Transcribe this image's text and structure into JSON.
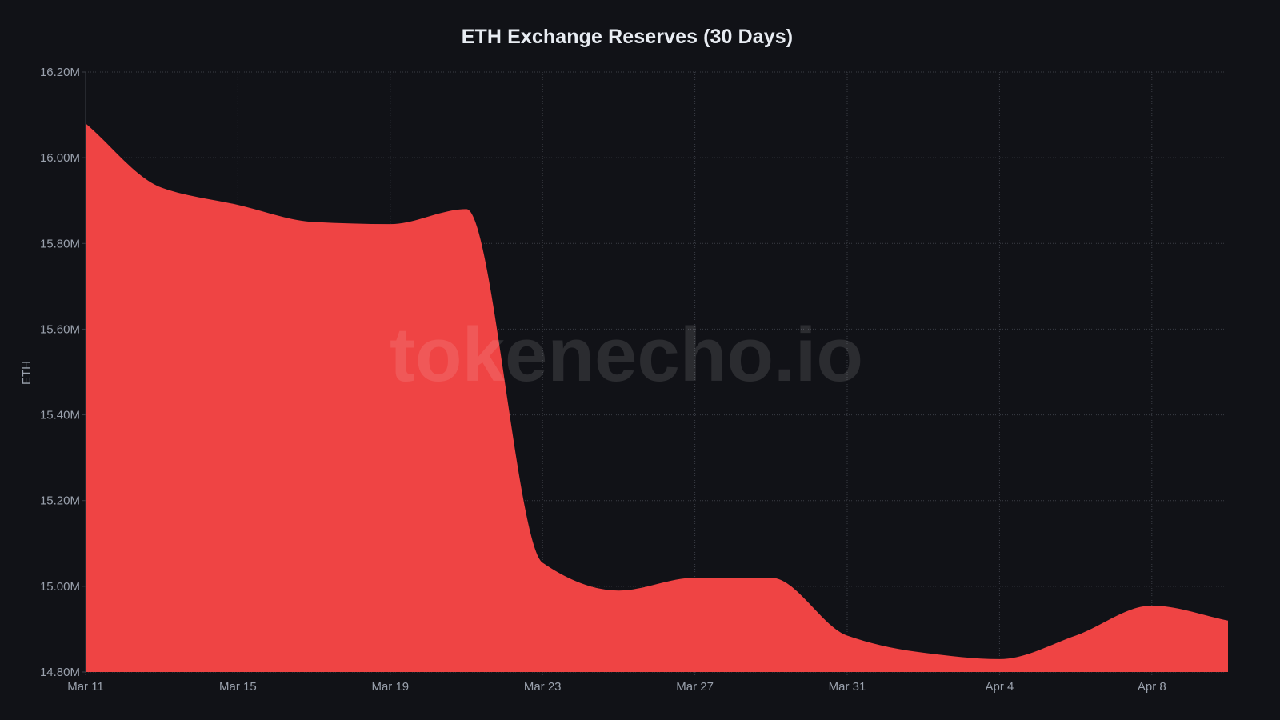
{
  "header": {
    "title": "ETH Exchange Reserves (30 Days)"
  },
  "watermark": "tokenecho.io",
  "colors": {
    "background": "#111217",
    "area_fill": "#EF4444",
    "grid": "#3a3d45",
    "tick_text": "#9aa1ad",
    "title_text": "#e8ecf2"
  },
  "chart_data": {
    "type": "area",
    "title": "ETH Exchange Reserves (30 Days)",
    "xlabel": "",
    "ylabel": "ETH",
    "ylim": [
      14.8,
      16.2
    ],
    "y_unit": "M",
    "grid": true,
    "legend": null,
    "x_tick_labels": [
      "Mar 11",
      "Mar 15",
      "Mar 19",
      "Mar 23",
      "Mar 27",
      "Mar 31",
      "Apr 4",
      "Apr 8"
    ],
    "y_tick_labels": [
      "14.80M",
      "15.00M",
      "15.20M",
      "15.40M",
      "15.60M",
      "15.80M",
      "16.00M",
      "16.20M"
    ],
    "y_ticks": [
      14.8,
      15.0,
      15.2,
      15.4,
      15.6,
      15.8,
      16.0,
      16.2
    ],
    "x_day_offsets_ticks": [
      0,
      4,
      8,
      12,
      16,
      20,
      24,
      28
    ],
    "x": [
      "Mar 11",
      "Mar 13",
      "Mar 15",
      "Mar 17",
      "Mar 19",
      "Mar 21",
      "Mar 23",
      "Mar 25",
      "Mar 27",
      "Mar 29",
      "Mar 31",
      "Apr 2",
      "Apr 4",
      "Apr 6",
      "Apr 8",
      "Apr 10"
    ],
    "x_day_offsets": [
      0,
      2,
      4,
      6,
      8,
      10,
      12,
      14,
      16,
      18,
      20,
      22,
      24,
      26,
      28,
      30
    ],
    "series": [
      {
        "name": "ETH Exchange Reserves",
        "values": [
          16.08,
          15.93,
          15.89,
          15.85,
          15.845,
          15.88,
          15.055,
          14.99,
          15.02,
          15.02,
          14.885,
          14.845,
          14.83,
          14.885,
          14.955,
          14.92
        ]
      }
    ]
  }
}
